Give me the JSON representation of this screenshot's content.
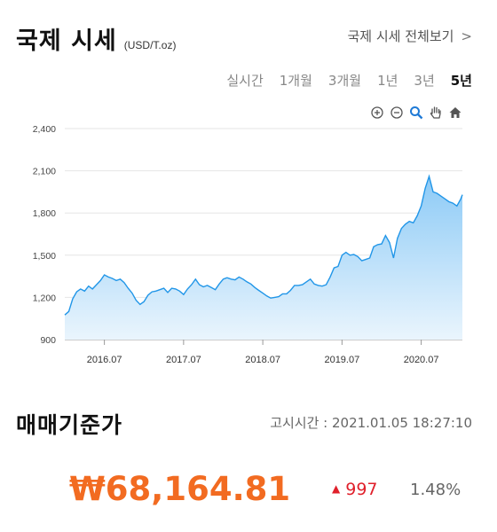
{
  "header": {
    "title": "국제 시세",
    "unit": "(USD/T.oz)",
    "more_link": "국제 시세 전체보기",
    "more_chevron": ">"
  },
  "periods": [
    {
      "label": "실시간",
      "active": false
    },
    {
      "label": "1개월",
      "active": false
    },
    {
      "label": "3개월",
      "active": false
    },
    {
      "label": "1년",
      "active": false
    },
    {
      "label": "3년",
      "active": false
    },
    {
      "label": "5년",
      "active": true
    }
  ],
  "toolbar": [
    "zoom-in-icon",
    "zoom-out-icon",
    "magnify-icon",
    "pan-hand-icon",
    "home-icon"
  ],
  "colors": {
    "line": "#2196e8",
    "fill_top": "#8ccaf6",
    "fill_bottom": "#eaf5fd",
    "price": "#f26b21",
    "up": "#e0202b"
  },
  "chart_data": {
    "type": "area",
    "y_ticks": [
      "2,400",
      "2,100",
      "1,800",
      "1,500",
      "1,200",
      "900"
    ],
    "ylim": [
      900,
      2400
    ],
    "x_ticks": [
      {
        "label": "2016.07",
        "x": 2016.5
      },
      {
        "label": "2017.07",
        "x": 2017.5
      },
      {
        "label": "2018.07",
        "x": 2018.5
      },
      {
        "label": "2019.07",
        "x": 2019.5
      },
      {
        "label": "2020.07",
        "x": 2020.5
      }
    ],
    "xlim": [
      2016.0,
      2021.02
    ],
    "grid": true,
    "series": [
      {
        "values": [
          [
            2016.0,
            1075
          ],
          [
            2016.05,
            1100
          ],
          [
            2016.1,
            1190
          ],
          [
            2016.15,
            1240
          ],
          [
            2016.2,
            1260
          ],
          [
            2016.25,
            1245
          ],
          [
            2016.3,
            1280
          ],
          [
            2016.35,
            1260
          ],
          [
            2016.4,
            1290
          ],
          [
            2016.45,
            1320
          ],
          [
            2016.5,
            1360
          ],
          [
            2016.55,
            1345
          ],
          [
            2016.6,
            1335
          ],
          [
            2016.65,
            1320
          ],
          [
            2016.7,
            1330
          ],
          [
            2016.75,
            1305
          ],
          [
            2016.8,
            1265
          ],
          [
            2016.85,
            1230
          ],
          [
            2016.9,
            1180
          ],
          [
            2016.95,
            1150
          ],
          [
            2017.0,
            1170
          ],
          [
            2017.05,
            1215
          ],
          [
            2017.1,
            1240
          ],
          [
            2017.15,
            1245
          ],
          [
            2017.2,
            1255
          ],
          [
            2017.25,
            1265
          ],
          [
            2017.3,
            1235
          ],
          [
            2017.35,
            1265
          ],
          [
            2017.4,
            1260
          ],
          [
            2017.45,
            1245
          ],
          [
            2017.5,
            1220
          ],
          [
            2017.55,
            1260
          ],
          [
            2017.6,
            1290
          ],
          [
            2017.65,
            1330
          ],
          [
            2017.7,
            1290
          ],
          [
            2017.75,
            1275
          ],
          [
            2017.8,
            1285
          ],
          [
            2017.85,
            1270
          ],
          [
            2017.9,
            1255
          ],
          [
            2017.95,
            1295
          ],
          [
            2018.0,
            1330
          ],
          [
            2018.05,
            1340
          ],
          [
            2018.1,
            1330
          ],
          [
            2018.15,
            1325
          ],
          [
            2018.2,
            1345
          ],
          [
            2018.25,
            1330
          ],
          [
            2018.3,
            1310
          ],
          [
            2018.35,
            1295
          ],
          [
            2018.4,
            1270
          ],
          [
            2018.45,
            1250
          ],
          [
            2018.5,
            1230
          ],
          [
            2018.55,
            1210
          ],
          [
            2018.6,
            1195
          ],
          [
            2018.65,
            1200
          ],
          [
            2018.7,
            1205
          ],
          [
            2018.75,
            1225
          ],
          [
            2018.8,
            1225
          ],
          [
            2018.85,
            1250
          ],
          [
            2018.9,
            1285
          ],
          [
            2018.95,
            1285
          ],
          [
            2019.0,
            1290
          ],
          [
            2019.05,
            1310
          ],
          [
            2019.1,
            1330
          ],
          [
            2019.15,
            1295
          ],
          [
            2019.2,
            1285
          ],
          [
            2019.25,
            1280
          ],
          [
            2019.3,
            1290
          ],
          [
            2019.35,
            1345
          ],
          [
            2019.4,
            1410
          ],
          [
            2019.45,
            1420
          ],
          [
            2019.5,
            1500
          ],
          [
            2019.55,
            1520
          ],
          [
            2019.6,
            1500
          ],
          [
            2019.65,
            1505
          ],
          [
            2019.7,
            1490
          ],
          [
            2019.75,
            1460
          ],
          [
            2019.8,
            1470
          ],
          [
            2019.85,
            1480
          ],
          [
            2019.9,
            1560
          ],
          [
            2019.95,
            1575
          ],
          [
            2020.0,
            1580
          ],
          [
            2020.05,
            1640
          ],
          [
            2020.1,
            1590
          ],
          [
            2020.15,
            1480
          ],
          [
            2020.2,
            1620
          ],
          [
            2020.25,
            1690
          ],
          [
            2020.3,
            1720
          ],
          [
            2020.35,
            1740
          ],
          [
            2020.4,
            1730
          ],
          [
            2020.45,
            1780
          ],
          [
            2020.5,
            1850
          ],
          [
            2020.55,
            1975
          ],
          [
            2020.6,
            2060
          ],
          [
            2020.65,
            1950
          ],
          [
            2020.7,
            1940
          ],
          [
            2020.75,
            1920
          ],
          [
            2020.8,
            1900
          ],
          [
            2020.85,
            1880
          ],
          [
            2020.9,
            1870
          ],
          [
            2020.95,
            1850
          ],
          [
            2021.0,
            1900
          ],
          [
            2021.02,
            1930
          ]
        ]
      }
    ]
  },
  "rate": {
    "title": "매매기준가",
    "timestamp": "고시시간 : 2021.01.05 18:27:10",
    "price": "₩68,164.81",
    "change_icon": "up-triangle-icon",
    "change": "997",
    "change_pct": "1.48%"
  }
}
